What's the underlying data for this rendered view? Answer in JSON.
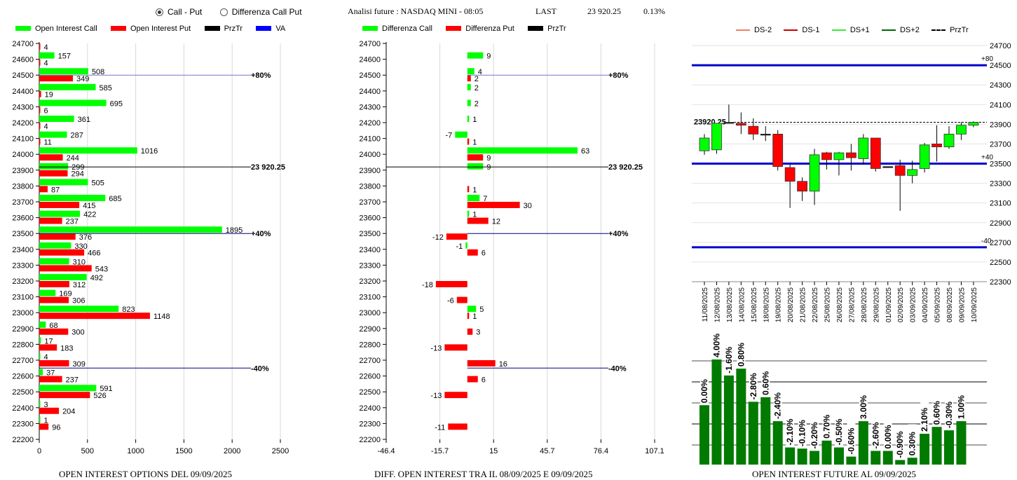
{
  "header": {
    "radio_options": [
      {
        "label": "Call - Put",
        "selected": true
      },
      {
        "label": "Differenza Call Put",
        "selected": false
      }
    ],
    "title": "Analisi future : NASDAQ MINI - 08:05",
    "last_label": "LAST",
    "last_value": "23 920.25",
    "change": "0.13%"
  },
  "chart_data": [
    {
      "id": "oi-options",
      "type": "bar",
      "orientation": "horizontal",
      "title": "OPEN INTEREST OPTIONS DEL 09/09/2025",
      "legend": [
        {
          "label": "Open Interest Call",
          "color": "#00ff00"
        },
        {
          "label": "Open Interest Put",
          "color": "#ff0000"
        },
        {
          "label": "PrzTr",
          "color": "#000000"
        },
        {
          "label": "VA",
          "color": "#0000ff"
        }
      ],
      "categories": [
        24700,
        24600,
        24500,
        24400,
        24300,
        24200,
        24100,
        24000,
        23900,
        23800,
        23700,
        23600,
        23500,
        23400,
        23300,
        23200,
        23100,
        23000,
        22900,
        22800,
        22700,
        22600,
        22500,
        22400,
        22300,
        22200
      ],
      "series": [
        {
          "name": "Open Interest Call",
          "color": "#00ff00",
          "values": [
            null,
            157,
            508,
            585,
            695,
            361,
            287,
            1016,
            299,
            505,
            685,
            422,
            1895,
            330,
            310,
            492,
            169,
            823,
            68,
            17,
            4,
            37,
            591,
            3,
            1,
            null
          ]
        },
        {
          "name": "Open Interest Put",
          "color": "#ff0000",
          "values": [
            4,
            4,
            349,
            19,
            6,
            4,
            11,
            244,
            294,
            87,
            415,
            237,
            376,
            466,
            543,
            312,
            306,
            1148,
            300,
            183,
            309,
            237,
            526,
            204,
            96,
            null
          ]
        }
      ],
      "xlim": [
        0,
        2500
      ],
      "xticks": [
        "0",
        "500",
        "1000",
        "1500",
        "2000",
        "2500"
      ],
      "ylim": [
        22200,
        24700
      ],
      "grid": true,
      "reference_lines": [
        {
          "label": "+80%",
          "y": 24500,
          "color": "#7777cc"
        },
        {
          "label": "23 920.25",
          "y": 23920.25,
          "color": "#000000"
        },
        {
          "label": "+40%",
          "y": 23500,
          "color": "#000080"
        },
        {
          "label": "-40%",
          "y": 22650,
          "color": "#000080"
        }
      ]
    },
    {
      "id": "oi-diff",
      "type": "bar",
      "orientation": "horizontal",
      "title": "DIFF. OPEN INTEREST TRA IL 08/09/2025 E 09/09/2025",
      "legend": [
        {
          "label": "Differenza Call",
          "color": "#00ff00"
        },
        {
          "label": "Differenza Put",
          "color": "#ff0000"
        },
        {
          "label": "PrzTr",
          "color": "#000000"
        }
      ],
      "categories": [
        24700,
        24600,
        24500,
        24400,
        24300,
        24200,
        24100,
        24000,
        23900,
        23800,
        23700,
        23600,
        23500,
        23400,
        23300,
        23200,
        23100,
        23000,
        22900,
        22800,
        22700,
        22600,
        22500,
        22400,
        22300,
        22200
      ],
      "series": [
        {
          "name": "Differenza Call",
          "color": "#00ff00",
          "values": [
            null,
            9,
            4,
            2,
            2,
            1,
            -7,
            63,
            9,
            null,
            7,
            1,
            null,
            -1,
            null,
            null,
            null,
            5,
            null,
            null,
            null,
            null,
            null,
            null,
            null,
            null
          ]
        },
        {
          "name": "Differenza Put",
          "color": "#ff0000",
          "values": [
            null,
            null,
            2,
            null,
            null,
            null,
            1,
            9,
            null,
            1,
            30,
            12,
            -12,
            6,
            null,
            -18,
            -6,
            1,
            3,
            -13,
            16,
            6,
            -13,
            null,
            -11,
            null
          ]
        }
      ],
      "xlim": [
        -46.4,
        107.1
      ],
      "xticks": [
        "-46.4",
        "-15.7",
        "15",
        "45.7",
        "76.4",
        "107.1"
      ],
      "ylim": [
        22200,
        24700
      ],
      "grid": true,
      "reference_lines": [
        {
          "label": "+80%",
          "y": 24500,
          "color": "#7777cc"
        },
        {
          "label": "23 920.25",
          "y": 23920.25,
          "color": "#000000"
        },
        {
          "label": "+40%",
          "y": 23500,
          "color": "#000080"
        },
        {
          "label": "-40%",
          "y": 22650,
          "color": "#000080"
        }
      ]
    },
    {
      "id": "candles",
      "type": "candlestick",
      "legend": [
        {
          "label": "DS-2",
          "color": "#f08060",
          "style": "solid"
        },
        {
          "label": "DS-1",
          "color": "#cc0000",
          "style": "solid"
        },
        {
          "label": "DS+1",
          "color": "#33ee33",
          "style": "solid"
        },
        {
          "label": "DS+2",
          "color": "#006600",
          "style": "solid"
        },
        {
          "label": "PrzTr",
          "color": "#000000",
          "style": "dashed"
        }
      ],
      "yticks": [
        24700,
        24500,
        24300,
        24100,
        23900,
        23700,
        23500,
        23300,
        23100,
        22900,
        22700,
        22500,
        22300
      ],
      "ylim": [
        22300,
        24700
      ],
      "last_price_label": "23920.25",
      "last_price": 23920.25,
      "va_lines": [
        {
          "label": "+80",
          "y": 24500
        },
        {
          "label": "+40",
          "y": 23500
        },
        {
          "label": "-40",
          "y": 22650
        }
      ],
      "dates": [
        "11/08/2025",
        "12/08/2025",
        "13/08/2025",
        "14/08/2025",
        "15/08/2025",
        "18/08/2025",
        "19/08/2025",
        "20/08/2025",
        "21/08/2025",
        "22/08/2025",
        "25/08/2025",
        "26/08/2025",
        "27/08/2025",
        "28/08/2025",
        "29/08/2025",
        "01/09/2025",
        "02/09/2025",
        "03/09/2025",
        "04/09/2025",
        "05/09/2025",
        "08/09/2025",
        "09/09/2025",
        "10/09/2025"
      ],
      "ohlc": [
        [
          23630,
          23800,
          23590,
          23760
        ],
        [
          23640,
          23910,
          23600,
          23910
        ],
        [
          23920,
          24100,
          23920,
          23920
        ],
        [
          23910,
          24020,
          23800,
          23890
        ],
        [
          23880,
          23960,
          23740,
          23800
        ],
        [
          23800,
          23880,
          23730,
          23800
        ],
        [
          23800,
          23840,
          23430,
          23470
        ],
        [
          23460,
          23490,
          23050,
          23320
        ],
        [
          23320,
          23360,
          23120,
          23220
        ],
        [
          23220,
          23650,
          23080,
          23590
        ],
        [
          23610,
          23620,
          23440,
          23540
        ],
        [
          23540,
          23620,
          23380,
          23610
        ],
        [
          23610,
          23700,
          23430,
          23560
        ],
        [
          23550,
          23800,
          23490,
          23760
        ],
        [
          23760,
          23760,
          23420,
          23450
        ],
        [
          23470,
          23470,
          23470,
          23470
        ],
        [
          23480,
          23540,
          23020,
          23380
        ],
        [
          23380,
          23530,
          23300,
          23440
        ],
        [
          23450,
          23710,
          23410,
          23690
        ],
        [
          23700,
          23890,
          23520,
          23670
        ],
        [
          23670,
          23880,
          23650,
          23800
        ],
        [
          23800,
          23920,
          23740,
          23890
        ],
        [
          23890,
          23930,
          23870,
          23920
        ]
      ]
    },
    {
      "id": "oi-future",
      "type": "bar",
      "title": "OPEN INTEREST FUTURE AL 09/09/2025",
      "color": "#007a00",
      "labels": [
        "0.00%",
        "4.00%",
        "-1.60%",
        "0.80%",
        "-2.80%",
        "0.60%",
        "-2.40%",
        "-2.10%",
        "-0.10%",
        "-0.20%",
        "0.70%",
        "-0.50%",
        "-0.60%",
        "3.00%",
        "-2.60%",
        "0.00%",
        "-0.90%",
        "0.30%",
        "2.10%",
        "0.60%",
        "-0.30%",
        "1.00%"
      ],
      "relative_heights": [
        0.52,
        0.92,
        0.78,
        0.84,
        0.55,
        0.59,
        0.38,
        0.15,
        0.14,
        0.12,
        0.21,
        0.15,
        0.07,
        0.38,
        0.12,
        0.12,
        0.04,
        0.06,
        0.27,
        0.33,
        0.3,
        0.38
      ],
      "grid": true
    }
  ]
}
